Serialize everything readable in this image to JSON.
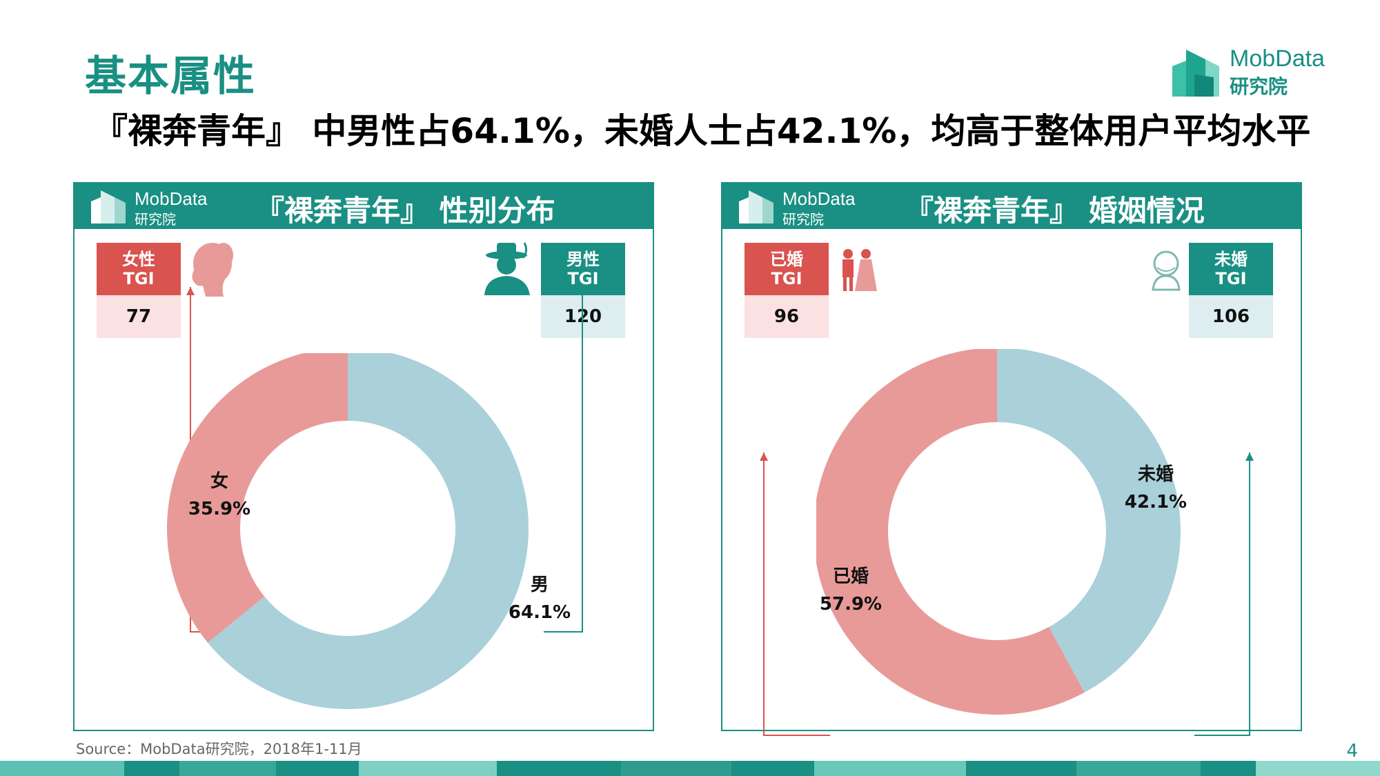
{
  "page": {
    "title": "基本属性",
    "headline": "『裸奔青年』 中男性占64.1%，未婚人士占42.1%，均高于整体用户平均水平",
    "brand_line1": "MobData",
    "brand_line2": "研究院",
    "source": "Source：MobData研究院，2018年1-11月",
    "page_number": "4",
    "colors": {
      "accent": "#1a8f83",
      "blue_segment": "#aad0d9",
      "red_segment": "#e89a98",
      "tgi_red": "#d9534f",
      "tgi_teal": "#1a8f83"
    }
  },
  "panels": [
    {
      "title": "『裸奔青年』 性别分布",
      "logo_line1": "MobData",
      "logo_line2": "研究院",
      "tgi_left": {
        "label": "女性",
        "sub": "TGI",
        "value": "77",
        "icon": "female-silhouette-icon"
      },
      "tgi_right": {
        "label": "男性",
        "sub": "TGI",
        "value": "120",
        "icon": "male-hat-silhouette-icon"
      }
    },
    {
      "title": "『裸奔青年』 婚姻情况",
      "logo_line1": "MobData",
      "logo_line2": "研究院",
      "tgi_left": {
        "label": "已婚",
        "sub": "TGI",
        "value": "96",
        "icon": "bride-groom-icon"
      },
      "tgi_right": {
        "label": "未婚",
        "sub": "TGI",
        "value": "106",
        "icon": "single-person-icon"
      }
    }
  ],
  "chart_data": [
    {
      "type": "pie",
      "title": "『裸奔青年』 性别分布",
      "donut": true,
      "categories": [
        "男",
        "女"
      ],
      "values": [
        64.1,
        35.9
      ],
      "labels": [
        "64.1%",
        "35.9%"
      ],
      "colors": [
        "#aad0d9",
        "#e89a98"
      ]
    },
    {
      "type": "pie",
      "title": "『裸奔青年』 婚姻情况",
      "donut": true,
      "categories": [
        "未婚",
        "已婚"
      ],
      "values": [
        42.1,
        57.9
      ],
      "labels": [
        "42.1%",
        "57.9%"
      ],
      "colors": [
        "#aad0d9",
        "#e89a98"
      ]
    }
  ]
}
